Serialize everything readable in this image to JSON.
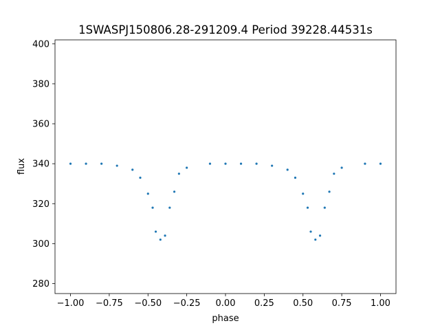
{
  "chart_data": {
    "type": "scatter",
    "title": "1SWASPJ150806.28-291209.4 Period 39228.44531s",
    "xlabel": "phase",
    "ylabel": "flux",
    "xlim": [
      -1.1,
      1.1
    ],
    "ylim": [
      275,
      402
    ],
    "x_ticks": [
      -1.0,
      -0.75,
      -0.5,
      -0.25,
      0.0,
      0.25,
      0.5,
      0.75,
      1.0
    ],
    "x_tick_labels": [
      "−1.00",
      "−0.75",
      "−0.50",
      "−0.25",
      "0.00",
      "0.25",
      "0.50",
      "0.75",
      "1.00"
    ],
    "y_ticks": [
      280,
      300,
      320,
      340,
      360,
      380,
      400
    ],
    "y_tick_labels": [
      "280",
      "300",
      "320",
      "340",
      "360",
      "380",
      "400"
    ],
    "grid": false,
    "legend": false,
    "point_color": "#1f77b4",
    "series": [
      {
        "description_of_light_curve": "phase-folded eclipsing binary; baseline flux ~340, primary eclipse minimum ~302 at phase -0.42 and 0.58, secondary shoulder ~320",
        "values": [
          {
            "phase": -1.0,
            "flux": 340
          },
          {
            "phase": -0.9,
            "flux": 340
          },
          {
            "phase": -0.8,
            "flux": 340
          },
          {
            "phase": -0.7,
            "flux": 339
          },
          {
            "phase": -0.6,
            "flux": 337
          },
          {
            "phase": -0.55,
            "flux": 333
          },
          {
            "phase": -0.5,
            "flux": 325
          },
          {
            "phase": -0.47,
            "flux": 318
          },
          {
            "phase": -0.45,
            "flux": 306
          },
          {
            "phase": -0.42,
            "flux": 302
          },
          {
            "phase": -0.39,
            "flux": 304
          },
          {
            "phase": -0.36,
            "flux": 318
          },
          {
            "phase": -0.33,
            "flux": 326
          },
          {
            "phase": -0.3,
            "flux": 335
          },
          {
            "phase": -0.25,
            "flux": 338
          },
          {
            "phase": -0.1,
            "flux": 340
          },
          {
            "phase": 0.0,
            "flux": 340
          },
          {
            "phase": 0.1,
            "flux": 340
          },
          {
            "phase": 0.2,
            "flux": 340
          },
          {
            "phase": 0.3,
            "flux": 339
          },
          {
            "phase": 0.4,
            "flux": 337
          },
          {
            "phase": 0.45,
            "flux": 333
          },
          {
            "phase": 0.5,
            "flux": 325
          },
          {
            "phase": 0.53,
            "flux": 318
          },
          {
            "phase": 0.55,
            "flux": 306
          },
          {
            "phase": 0.58,
            "flux": 302
          },
          {
            "phase": 0.61,
            "flux": 304
          },
          {
            "phase": 0.64,
            "flux": 318
          },
          {
            "phase": 0.67,
            "flux": 326
          },
          {
            "phase": 0.7,
            "flux": 335
          },
          {
            "phase": 0.75,
            "flux": 338
          },
          {
            "phase": 0.9,
            "flux": 340
          },
          {
            "phase": 1.0,
            "flux": 340
          }
        ]
      }
    ]
  }
}
